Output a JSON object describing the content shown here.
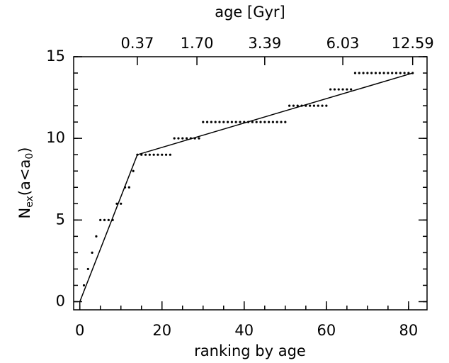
{
  "chart_data": {
    "type": "scatter",
    "xlabel": "ranking by age",
    "x2label": "age [Gyr]",
    "ylabel": [
      {
        "text": "N"
      },
      {
        "text": "ex",
        "sub": true
      },
      {
        "text": "(a<a"
      },
      {
        "text": "0",
        "sub": true
      },
      {
        "text": ")"
      }
    ],
    "xlim": [
      -1.5,
      84.5
    ],
    "ylim": [
      -0.5,
      15
    ],
    "xticks": [
      0,
      20,
      40,
      60,
      80
    ],
    "yticks": [
      0,
      5,
      10,
      15
    ],
    "xminor": 5,
    "yminor": 1,
    "x2ticks": [
      {
        "value": 14,
        "label": "0.37"
      },
      {
        "value": 28.5,
        "label": "1.70"
      },
      {
        "value": 45,
        "label": "3.39"
      },
      {
        "value": 64,
        "label": "6.03"
      },
      {
        "value": 81,
        "label": "12.59"
      }
    ],
    "series": [
      {
        "style": "dots",
        "color": "#000000",
        "x": [
          1,
          2,
          3,
          4,
          5,
          6,
          7,
          8,
          9,
          10,
          11,
          12,
          13,
          14,
          15,
          16,
          17,
          18,
          19,
          20,
          21,
          22,
          23,
          24,
          25,
          26,
          27,
          28,
          29,
          30,
          31,
          32,
          33,
          34,
          35,
          36,
          37,
          38,
          39,
          40,
          41,
          42,
          43,
          44,
          45,
          46,
          47,
          48,
          49,
          50,
          51,
          52,
          53,
          54,
          55,
          56,
          57,
          58,
          59,
          60,
          61,
          62,
          63,
          64,
          65,
          66,
          67,
          68,
          69,
          70,
          71,
          72,
          73,
          74,
          75,
          76,
          77,
          78,
          79,
          80,
          81
        ],
        "values": [
          1,
          2,
          3,
          4,
          5,
          5,
          5,
          5,
          6,
          6,
          7,
          7,
          8,
          9,
          9,
          9,
          9,
          9,
          9,
          9,
          9,
          9,
          10,
          10,
          10,
          10,
          10,
          10,
          10,
          11,
          11,
          11,
          11,
          11,
          11,
          11,
          11,
          11,
          11,
          11,
          11,
          11,
          11,
          11,
          11,
          11,
          11,
          11,
          11,
          11,
          12,
          12,
          12,
          12,
          12,
          12,
          12,
          12,
          12,
          12,
          13,
          13,
          13,
          13,
          13,
          13,
          14,
          14,
          14,
          14,
          14,
          14,
          14,
          14,
          14,
          14,
          14,
          14,
          14,
          14,
          14
        ]
      },
      {
        "style": "line",
        "color": "#000000",
        "x": [
          0,
          14,
          81
        ],
        "values": [
          0,
          9,
          14
        ]
      }
    ]
  }
}
